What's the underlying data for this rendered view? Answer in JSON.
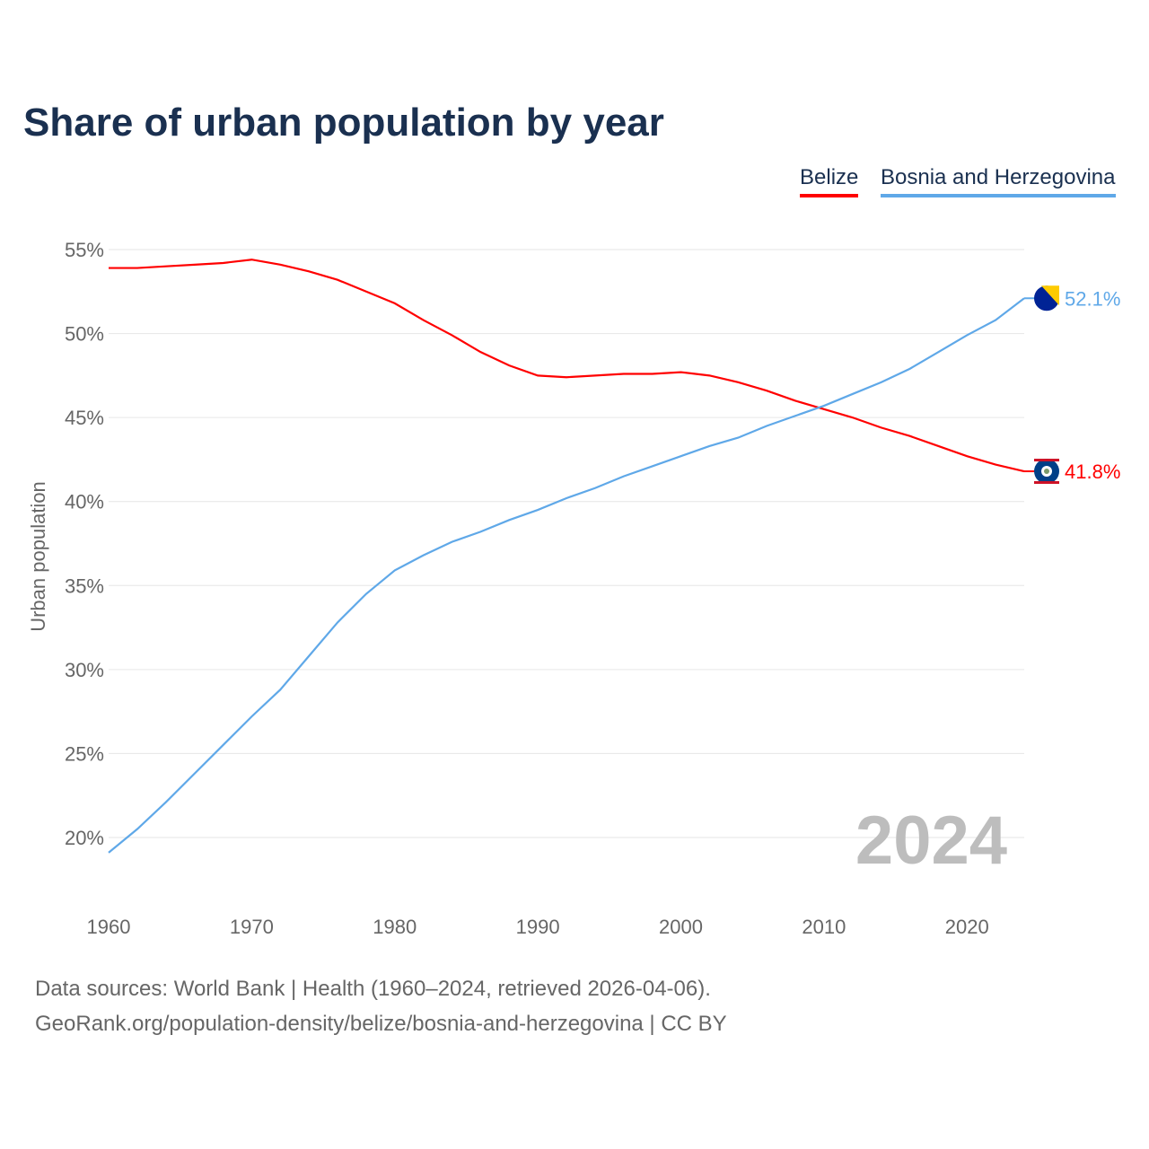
{
  "title": "Share of urban population by year",
  "year_watermark": "2024",
  "footer": {
    "line1": "Data sources: World Bank | Health (1960–2024, retrieved 2026-04-06).",
    "line2": "GeoRank.org/population-density/belize/bosnia-and-herzegovina | CC BY"
  },
  "chart_data": {
    "type": "line",
    "title": "Share of urban population by year",
    "xlabel": "",
    "ylabel": "Urban population",
    "xlim": [
      1960,
      2024
    ],
    "ylim": [
      18,
      56
    ],
    "x_ticks": [
      1960,
      1970,
      1980,
      1990,
      2000,
      2010,
      2020
    ],
    "x_tick_labels": [
      "1960",
      "1970",
      "1980",
      "1990",
      "2000",
      "2010",
      "2020"
    ],
    "y_ticks": [
      20,
      25,
      30,
      35,
      40,
      45,
      50,
      55
    ],
    "y_tick_labels": [
      "20%",
      "25%",
      "30%",
      "35%",
      "40%",
      "45%",
      "50%",
      "55%"
    ],
    "grid": true,
    "legend_placement": "top-right",
    "x": [
      1960,
      1962,
      1964,
      1966,
      1968,
      1970,
      1972,
      1974,
      1976,
      1978,
      1980,
      1982,
      1984,
      1986,
      1988,
      1990,
      1992,
      1994,
      1996,
      1998,
      2000,
      2002,
      2004,
      2006,
      2008,
      2010,
      2012,
      2014,
      2016,
      2018,
      2020,
      2022,
      2024
    ],
    "series": [
      {
        "name": "Belize",
        "color": "#ff0000",
        "end_label": "41.8%",
        "flag": "belize-flag",
        "values": [
          53.9,
          53.9,
          54.0,
          54.1,
          54.2,
          54.4,
          54.1,
          53.7,
          53.2,
          52.5,
          51.8,
          50.8,
          49.9,
          48.9,
          48.1,
          47.5,
          47.4,
          47.5,
          47.6,
          47.6,
          47.7,
          47.5,
          47.1,
          46.6,
          46.0,
          45.5,
          45.0,
          44.4,
          43.9,
          43.3,
          42.7,
          42.2,
          41.8
        ]
      },
      {
        "name": "Bosnia and Herzegovina",
        "color": "#5fa8e8",
        "end_label": "52.1%",
        "flag": "bosnia-flag",
        "values": [
          19.1,
          20.5,
          22.1,
          23.8,
          25.5,
          27.2,
          28.8,
          30.8,
          32.8,
          34.5,
          35.9,
          36.8,
          37.6,
          38.2,
          38.9,
          39.5,
          40.2,
          40.8,
          41.5,
          42.1,
          42.7,
          43.3,
          43.8,
          44.5,
          45.1,
          45.7,
          46.4,
          47.1,
          47.9,
          48.9,
          49.9,
          50.8,
          52.1
        ]
      }
    ]
  }
}
